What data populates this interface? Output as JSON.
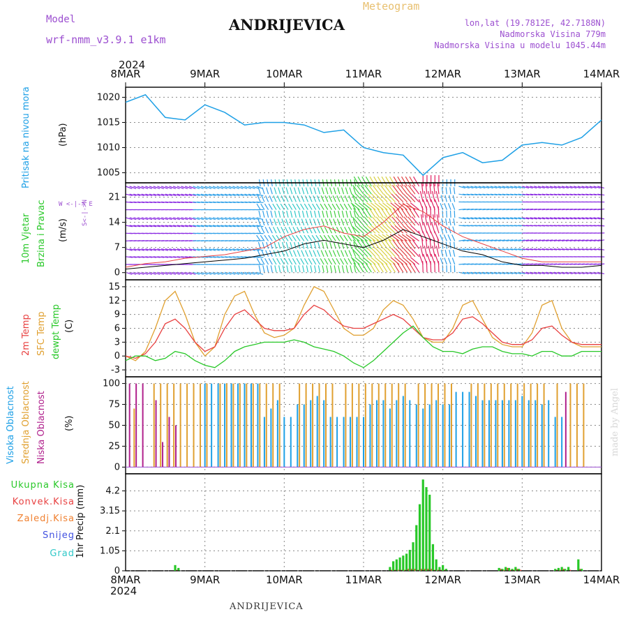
{
  "header": {
    "model_label": "Model",
    "model_name": "wrf-nmm_v3.9.1  e1km",
    "station": "ANDRIJEVICA",
    "meteogram": "Meteogram",
    "lonlat": "lon,lat (19.7812E, 42.7188N)",
    "elevation": "Nadmorska Visina 779m",
    "elevation_model": "Nadmorska Visina u modelu 1045.44m",
    "footer_station": "ANDRIJEVICA",
    "credit": "made by Angel"
  },
  "time_axis": {
    "year": "2024",
    "ticks": [
      "8MAR",
      "9MAR",
      "10MAR",
      "11MAR",
      "12MAR",
      "13MAR",
      "14MAR"
    ]
  },
  "colors": {
    "pressure": "#1ea0e6",
    "t2m": "#e84040",
    "tsfc": "#e0a030",
    "dewpt": "#28c828",
    "cloud_high": "#1ea0e6",
    "cloud_mid": "#e0a030",
    "cloud_low": "#b0208c",
    "precip_total": "#28c828",
    "precip_conv": "#e84040",
    "wind_speed": "#000000",
    "wind_gust": "#e84040"
  },
  "panels": {
    "pressure": {
      "label": "Pritisak na nivou mora",
      "unit": "(hPa)",
      "ticks": [
        "1005",
        "1010",
        "1015",
        "1020"
      ]
    },
    "wind": {
      "label1": "10m Vjetar",
      "label2": "Brzina i Pravac",
      "unit": "(m/s)",
      "ticks": [
        "0",
        "7",
        "14",
        "21"
      ],
      "compass": "W <-|-> E",
      "compass_ns": "S<-|->N"
    },
    "temp": {
      "label1": "2m Temp",
      "label2": "SFC Temp",
      "label3": "dewpt Temp",
      "unit": "(C)",
      "ticks": [
        "-3",
        "0",
        "3",
        "6",
        "9",
        "12",
        "15"
      ]
    },
    "cloud": {
      "label1": "Visoka Oblacnost",
      "label2": "Srednja Oblacnost",
      "label3": "Niska Oblacnost",
      "unit": "(%)",
      "ticks": [
        "0",
        "25",
        "50",
        "75",
        "100"
      ]
    },
    "precip": {
      "unit": "1hr Precip (mm)",
      "ticks": [
        "0",
        "1.05",
        "2.1",
        "3.15",
        "4.2"
      ],
      "legend": [
        "Ukupna Kisa",
        "Konvek.Kisa",
        "Zaledj.Kisa",
        "Snijeg",
        "Grad"
      ]
    }
  },
  "chart_data": [
    {
      "type": "line",
      "title": "Pritisak na nivou mora",
      "ylabel": "(hPa)",
      "ylim": [
        1003,
        1022
      ],
      "x_hours": [
        0,
        6,
        12,
        18,
        24,
        30,
        36,
        42,
        48,
        54,
        60,
        66,
        72,
        78,
        84,
        90,
        96,
        102,
        108,
        114,
        120,
        126,
        132,
        138,
        144
      ],
      "series": [
        {
          "name": "Pritisak na nivou mora",
          "values": [
            1019,
            1020.5,
            1016,
            1015.5,
            1018.5,
            1017,
            1014.5,
            1015,
            1015,
            1014.5,
            1013,
            1013.5,
            1010,
            1009,
            1008.5,
            1004.5,
            1008,
            1009,
            1007,
            1007.5,
            1010.5,
            1011,
            1010.5,
            1012,
            1015.5
          ]
        }
      ]
    },
    {
      "type": "line",
      "title": "10m Vjetar Brzina i Pravac",
      "ylabel": "(m/s)",
      "ylim": [
        -2,
        25
      ],
      "x_hours": [
        0,
        6,
        12,
        18,
        24,
        30,
        36,
        42,
        48,
        54,
        60,
        66,
        72,
        78,
        84,
        90,
        96,
        102,
        108,
        114,
        120,
        126,
        132,
        138,
        144
      ],
      "series": [
        {
          "name": "speed",
          "values": [
            1,
            1.5,
            2,
            2.5,
            3,
            3.5,
            4,
            5,
            6,
            8,
            9,
            8,
            7,
            9,
            12,
            10,
            8,
            6,
            5,
            3,
            2,
            2,
            1.5,
            1.5,
            2
          ]
        },
        {
          "name": "gust",
          "values": [
            1.5,
            2.5,
            3,
            4,
            4.5,
            5,
            6,
            7,
            10,
            12,
            13,
            11,
            10,
            14,
            19,
            17,
            13,
            10,
            8,
            6,
            4,
            3,
            3,
            3,
            3
          ]
        }
      ]
    },
    {
      "type": "line",
      "title": "Temperature",
      "ylabel": "(C)",
      "ylim": [
        -4.5,
        16.5
      ],
      "x_hours": [
        0,
        3,
        6,
        9,
        12,
        15,
        18,
        21,
        24,
        27,
        30,
        33,
        36,
        39,
        42,
        45,
        48,
        51,
        54,
        57,
        60,
        63,
        66,
        69,
        72,
        75,
        78,
        81,
        84,
        87,
        90,
        93,
        96,
        99,
        102,
        105,
        108,
        111,
        114,
        117,
        120,
        123,
        126,
        129,
        132,
        135,
        138,
        141,
        144
      ],
      "series": [
        {
          "name": "2m Temp",
          "values": [
            0,
            -0.5,
            0.5,
            3,
            7,
            8,
            6,
            3,
            1,
            2,
            6,
            9,
            10,
            8,
            6,
            5.5,
            5.5,
            6,
            9,
            11,
            10,
            8,
            6.5,
            6,
            6,
            7,
            8,
            9,
            8,
            6,
            4,
            3.5,
            3.5,
            5,
            8,
            8.5,
            7,
            5,
            3,
            2.5,
            2.5,
            3.5,
            6,
            6.5,
            4.5,
            3,
            2.5,
            2.5,
            2.5
          ]
        },
        {
          "name": "SFC Temp",
          "values": [
            0,
            -1,
            1,
            6,
            12,
            14,
            9,
            3,
            0,
            2,
            9,
            13,
            14,
            9,
            5,
            4,
            4.5,
            6,
            11,
            15,
            14,
            10,
            6,
            4.5,
            4.5,
            6,
            10,
            12,
            11,
            8,
            4,
            3,
            3,
            6,
            11,
            12,
            8,
            4,
            2.5,
            2,
            2,
            5,
            11,
            12,
            6,
            3,
            2,
            2,
            2
          ]
        },
        {
          "name": "dewpt Temp",
          "values": [
            -1,
            0,
            0,
            -1,
            -0.5,
            1,
            0.5,
            -1,
            -2,
            -2.5,
            -1,
            1,
            2,
            2.5,
            3,
            3,
            3,
            3.5,
            3,
            2,
            1.5,
            1,
            0,
            -1.5,
            -2.5,
            -1,
            1,
            3,
            5,
            6.5,
            4,
            2,
            1,
            1,
            0.5,
            1.5,
            2,
            2,
            1,
            0.5,
            0.5,
            0,
            1,
            1,
            0,
            0,
            1,
            1,
            1
          ]
        }
      ]
    },
    {
      "type": "bar",
      "title": "Oblacnost",
      "ylabel": "(%)",
      "ylim": [
        0,
        100
      ],
      "series": [
        {
          "name": "Visoka Oblacnost",
          "values": [
            0,
            0,
            0,
            0,
            0,
            0,
            0,
            0,
            0,
            0,
            0,
            0,
            100,
            100,
            100,
            100,
            100,
            100,
            100,
            100,
            100,
            60,
            70,
            80,
            60,
            60,
            75,
            75,
            80,
            85,
            80,
            60,
            60,
            60,
            60,
            60,
            60,
            75,
            80,
            80,
            70,
            80,
            85,
            80,
            75,
            70,
            75,
            80,
            75,
            75,
            90,
            90,
            90,
            85,
            80,
            80,
            80,
            80,
            80,
            80,
            85,
            80,
            80,
            75,
            80,
            60,
            60,
            0,
            0,
            0,
            0,
            0,
            0
          ]
        },
        {
          "name": "Srednja Oblacnost",
          "values": [
            0,
            70,
            0,
            0,
            100,
            100,
            100,
            100,
            100,
            100,
            100,
            100,
            100,
            0,
            100,
            100,
            100,
            100,
            100,
            100,
            100,
            100,
            100,
            100,
            0,
            0,
            100,
            100,
            100,
            100,
            100,
            100,
            0,
            100,
            100,
            100,
            100,
            100,
            100,
            100,
            100,
            100,
            100,
            0,
            100,
            100,
            100,
            100,
            100,
            100,
            0,
            0,
            100,
            100,
            100,
            100,
            100,
            100,
            100,
            100,
            100,
            100,
            100,
            100,
            0,
            100,
            0,
            100,
            100,
            100,
            0,
            0,
            0
          ]
        },
        {
          "name": "Niska Oblacnost",
          "values": [
            100,
            100,
            100,
            0,
            80,
            30,
            60,
            50,
            0,
            0,
            0,
            0,
            0,
            0,
            0,
            0,
            0,
            0,
            0,
            0,
            0,
            0,
            0,
            0,
            0,
            0,
            0,
            0,
            0,
            0,
            0,
            0,
            0,
            0,
            0,
            0,
            0,
            0,
            0,
            0,
            0,
            0,
            0,
            0,
            0,
            0,
            0,
            0,
            0,
            0,
            0,
            0,
            0,
            0,
            0,
            0,
            0,
            0,
            0,
            0,
            0,
            0,
            0,
            0,
            0,
            0,
            90,
            0,
            0,
            0,
            0,
            0,
            0
          ]
        }
      ]
    },
    {
      "type": "bar",
      "title": "1hr Precip",
      "ylabel": "1hr Precip (mm)",
      "ylim": [
        0,
        5
      ],
      "x_hours": [
        15,
        16,
        80,
        81,
        82,
        83,
        84,
        85,
        86,
        87,
        88,
        89,
        90,
        91,
        92,
        93,
        94,
        95,
        96,
        97,
        98,
        99,
        100,
        101,
        102,
        103,
        104,
        113,
        114,
        115,
        116,
        117,
        118,
        119,
        120,
        121,
        122,
        123,
        124,
        125,
        126,
        127,
        128,
        129,
        130,
        131,
        132,
        133,
        134,
        135,
        136,
        137,
        138
      ],
      "series": [
        {
          "name": "Ukupna Kisa",
          "values": [
            0.3,
            0.15,
            0.2,
            0.5,
            0.6,
            0.7,
            0.8,
            0.9,
            1.1,
            1.5,
            2.4,
            3.5,
            4.8,
            4.4,
            4.0,
            1.4,
            0.6,
            0.2,
            0.3,
            0.1,
            0,
            0,
            0,
            0,
            0,
            0,
            0,
            0.15,
            0.1,
            0.2,
            0.15,
            0.1,
            0.2,
            0.1,
            0,
            0,
            0,
            0,
            0,
            0,
            0,
            0,
            0,
            0,
            0.1,
            0.15,
            0.2,
            0.1,
            0.2,
            0,
            0,
            0.6,
            0.1
          ]
        },
        {
          "name": "Konvek.Kisa",
          "values": [
            0.05,
            0,
            0.05,
            0.05,
            0.05,
            0.05,
            0.05,
            0.1,
            0.1,
            0.1,
            0.05,
            0.1,
            0.1,
            0.1,
            0.1,
            0.05,
            0.05,
            0.05,
            0.05,
            0,
            0,
            0,
            0,
            0,
            0,
            0,
            0,
            0.1,
            0.05,
            0.15,
            0.05,
            0.05,
            0.1,
            0.05,
            0,
            0,
            0,
            0,
            0,
            0,
            0,
            0,
            0,
            0,
            0.05,
            0.05,
            0.1,
            0,
            0.05,
            0,
            0,
            0.1,
            0
          ]
        }
      ]
    }
  ]
}
